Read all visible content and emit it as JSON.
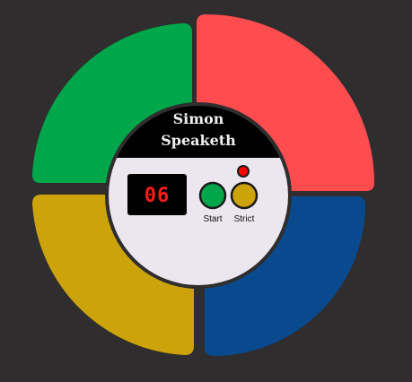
{
  "game": {
    "title_line1": "Simon",
    "title_line2": "Speaketh",
    "count": "06",
    "start_label": "Start",
    "strict_label": "Strict",
    "strict_led_on": true
  },
  "colors": {
    "background": "#2f2d2e",
    "green_pad": "#00a74a",
    "red_pad": "#ff4d4f",
    "yellow_pad": "#cca30a",
    "blue_pad": "#094a8f",
    "hub_header": "#000000",
    "hub_body": "#ece6ee",
    "count_display_bg": "#000000",
    "count_text": "#ff1a1a",
    "start_button": "#00a74a",
    "strict_button": "#cca30a",
    "strict_led": "#ff0000"
  }
}
